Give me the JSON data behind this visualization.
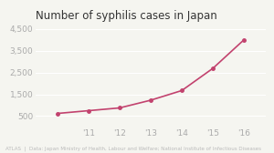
{
  "title": "Number of syphilis cases in Japan",
  "x_values": [
    2010,
    2011,
    2012,
    2013,
    2014,
    2015,
    2016
  ],
  "y_values": [
    621,
    748,
    875,
    1228,
    1671,
    2690,
    4000
  ],
  "ylim": [
    0,
    4700
  ],
  "yticks": [
    500,
    1500,
    2500,
    3500,
    4500
  ],
  "ytick_labels": [
    "500",
    "1,500",
    "2,500",
    "3,500",
    "4,500"
  ],
  "xticks": [
    2011,
    2012,
    2013,
    2014,
    2015,
    2016
  ],
  "xtick_labels": [
    "'11",
    "'12",
    "'13",
    "'14",
    "'15",
    "'16"
  ],
  "xlim": [
    2009.3,
    2016.7
  ],
  "line_color": "#c2426e",
  "bg_color": "#f5f5f0",
  "plot_bg_color": "#f5f5f0",
  "grid_color": "#ffffff",
  "title_fontsize": 8.5,
  "tick_fontsize": 6.5,
  "tick_color": "#aaaaaa",
  "title_color": "#333333",
  "footer_text": "ATLAS  |  Data: Japan Ministry of Health, Labour and Welfare; National Institute of Infectious Diseases",
  "footer_fontsize": 4.0,
  "footer_color": "#bbbbbb"
}
